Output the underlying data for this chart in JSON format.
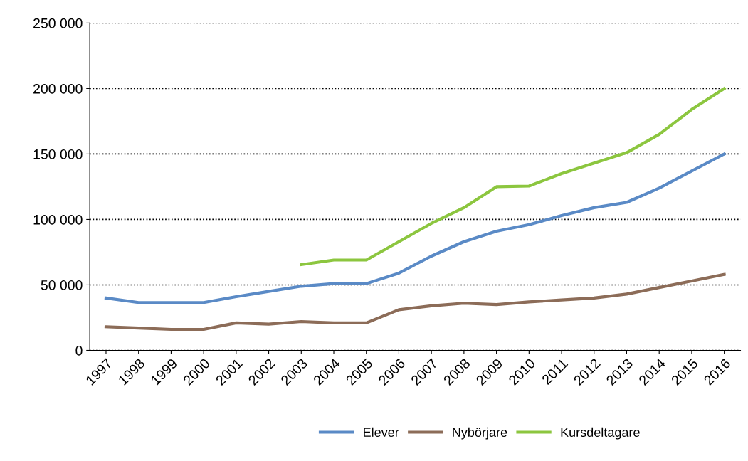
{
  "chart_data": {
    "type": "line",
    "categories": [
      "1997",
      "1998",
      "1999",
      "2000",
      "2001",
      "2002",
      "2003",
      "2004",
      "2005",
      "2006",
      "2007",
      "2008",
      "2009",
      "2010",
      "2011",
      "2012",
      "2013",
      "2014",
      "2015",
      "2016"
    ],
    "series": [
      {
        "name": "Elever",
        "color": "#5a8ac6",
        "values": [
          40000,
          36500,
          36500,
          36500,
          41000,
          45000,
          49000,
          51000,
          51000,
          59000,
          72000,
          83000,
          91000,
          96000,
          103000,
          109000,
          113000,
          124000,
          137000,
          150000
        ]
      },
      {
        "name": "Nybörjare",
        "color": "#8c6c58",
        "values": [
          18000,
          17000,
          16000,
          16000,
          21000,
          20000,
          22000,
          21000,
          21000,
          31000,
          34000,
          36000,
          35000,
          37000,
          38500,
          40000,
          43000,
          48000,
          53000,
          58000
        ]
      },
      {
        "name": "Kursdeltagare",
        "color": "#8cc63f",
        "values": [
          null,
          null,
          null,
          null,
          null,
          null,
          65500,
          69000,
          69000,
          83000,
          97000,
          109000,
          125000,
          125500,
          135000,
          143000,
          151000,
          165000,
          184000,
          200000
        ]
      }
    ],
    "ylim": [
      0,
      250000
    ],
    "yticks": [
      0,
      {
        "value": 50000,
        "label": "50 000"
      },
      {
        "value": 100000,
        "label": "100 000"
      },
      {
        "value": 150000,
        "label": "150 000"
      },
      {
        "value": 200000,
        "label": "200 000"
      },
      {
        "value": 250000,
        "label": "250 000"
      }
    ],
    "grid": "y",
    "legend": "bottom",
    "marker": "none",
    "line_style": "solid"
  }
}
